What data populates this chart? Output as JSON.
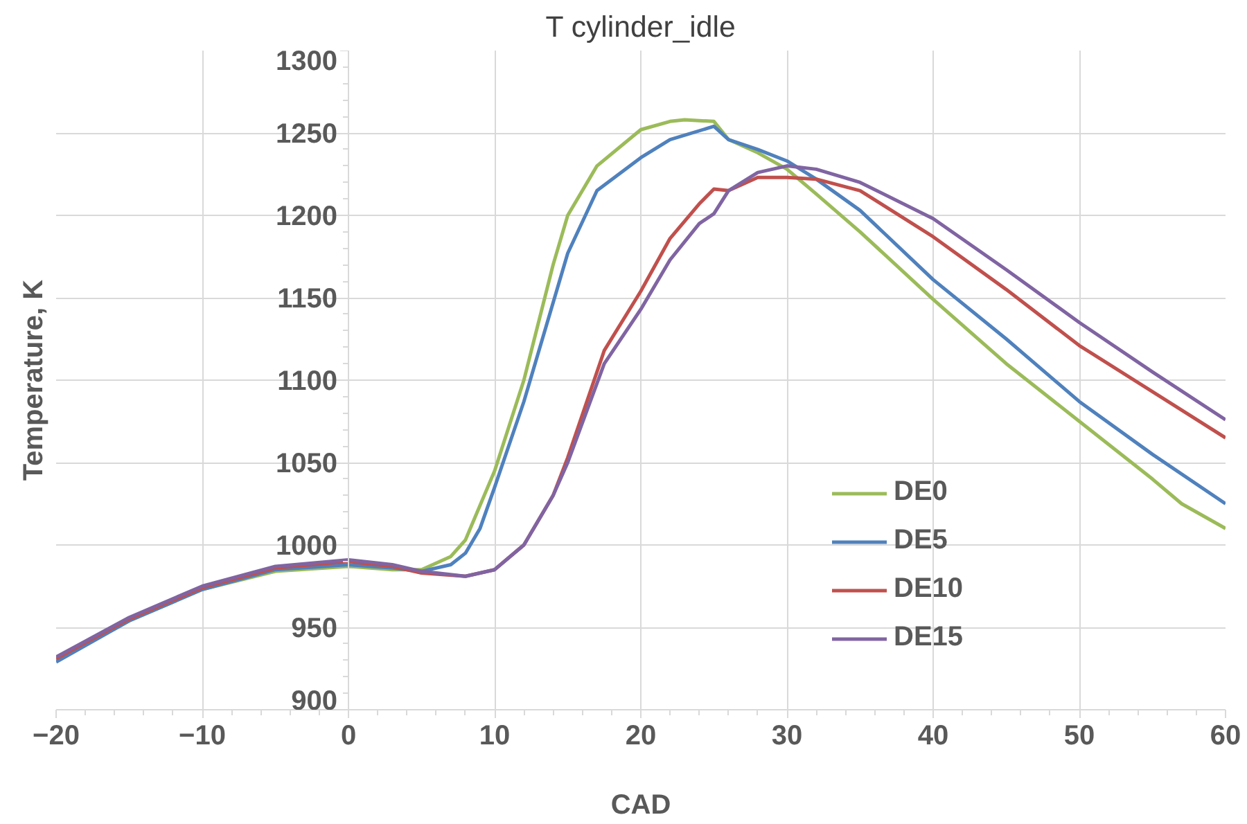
{
  "chart_data": {
    "type": "line",
    "title": "T cylinder_idle",
    "xlabel": "CAD",
    "ylabel": "Temperature, K",
    "xlim": [
      -20,
      60
    ],
    "ylim": [
      900,
      1300
    ],
    "xticks": [
      -20,
      -10,
      0,
      10,
      20,
      30,
      40,
      50,
      60
    ],
    "yticks": [
      900,
      950,
      1000,
      1050,
      1100,
      1150,
      1200,
      1250,
      1300
    ],
    "grid": true,
    "legend": "right",
    "marker": "none",
    "line_style": "solid",
    "series": [
      {
        "name": "DE0",
        "color": "#9bbb59",
        "x": [
          -20,
          -15,
          -10,
          -5,
          0,
          3,
          5,
          7,
          8,
          10,
          12,
          14,
          15,
          17,
          20,
          22,
          23,
          25,
          26,
          28,
          30,
          32,
          35,
          40,
          45,
          50,
          55,
          57,
          60
        ],
        "values": [
          930,
          954,
          973,
          984,
          987,
          985,
          985,
          993,
          1003,
          1045,
          1100,
          1170,
          1200,
          1230,
          1252,
          1257,
          1258,
          1257,
          1246,
          1238,
          1228,
          1213,
          1190,
          1149,
          1110,
          1075,
          1040,
          1025,
          1010
        ]
      },
      {
        "name": "DE5",
        "color": "#4f81bd",
        "x": [
          -20,
          -15,
          -10,
          -5,
          0,
          3,
          5,
          7,
          8,
          9,
          10,
          12,
          15,
          17,
          20,
          22,
          25,
          26,
          28,
          30,
          32,
          35,
          40,
          45,
          50,
          55,
          60
        ],
        "values": [
          929,
          954,
          973,
          985,
          988,
          986,
          984,
          988,
          995,
          1010,
          1035,
          1087,
          1177,
          1215,
          1235,
          1246,
          1254,
          1246,
          1240,
          1233,
          1222,
          1203,
          1161,
          1125,
          1087,
          1055,
          1025
        ]
      },
      {
        "name": "DE10",
        "color": "#c0504d",
        "x": [
          -20,
          -15,
          -10,
          -5,
          0,
          3,
          5,
          8,
          10,
          12,
          14,
          15,
          17.5,
          20,
          22,
          24,
          25,
          26,
          28,
          30,
          32,
          35,
          40,
          45,
          50,
          55,
          60
        ],
        "values": [
          931,
          955,
          974,
          986,
          990,
          987,
          983,
          981,
          985,
          1000,
          1030,
          1053,
          1118,
          1154,
          1186,
          1207,
          1216,
          1215,
          1223,
          1223,
          1222,
          1215,
          1187,
          1155,
          1121,
          1093,
          1065
        ]
      },
      {
        "name": "DE15",
        "color": "#8064a2",
        "x": [
          -20,
          -15,
          -10,
          -5,
          0,
          3,
          5,
          8,
          10,
          12,
          14,
          15,
          17.5,
          20,
          22,
          24,
          25,
          26,
          28,
          30,
          32,
          35,
          40,
          45,
          50,
          55,
          60
        ],
        "values": [
          932,
          956,
          975,
          987,
          991,
          988,
          984,
          981,
          985,
          1000,
          1030,
          1050,
          1110,
          1143,
          1173,
          1195,
          1201,
          1215,
          1226,
          1230,
          1228,
          1220,
          1198,
          1167,
          1135,
          1105,
          1076
        ]
      }
    ]
  }
}
